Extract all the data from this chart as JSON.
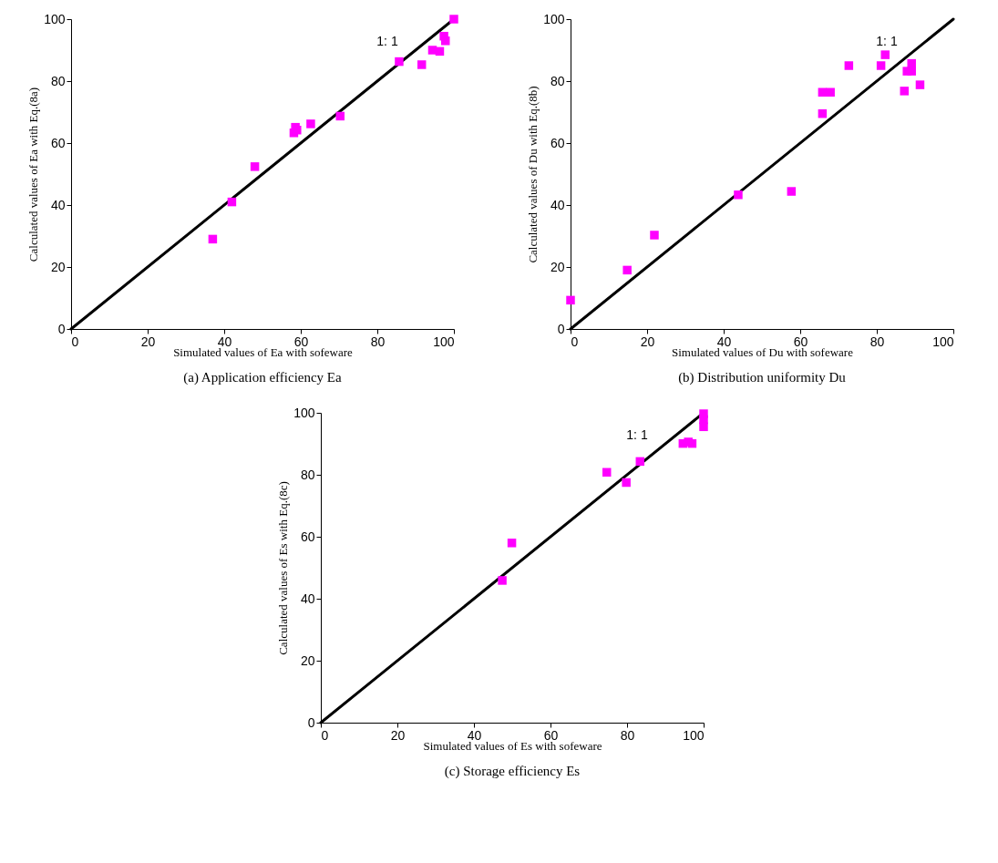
{
  "chart_data": [
    {
      "type": "scatter",
      "title": "(a)  Application efficiency Ea",
      "xlabel": "Simulated values of Ea  with sofeware",
      "ylabel": "Calculated values of Ea  with Eq.(8a)",
      "xlim": [
        0,
        100
      ],
      "ylim": [
        0,
        100
      ],
      "xticks": [
        0,
        20,
        40,
        60,
        80,
        100
      ],
      "yticks": [
        0,
        20,
        40,
        60,
        80,
        100
      ],
      "annotations": [
        "1: 1"
      ],
      "series": [
        {
          "color": "#ff00ff",
          "marker": "square",
          "x": [
            37,
            42,
            48,
            58.2,
            58.6,
            59,
            62.6,
            70.3,
            85.7,
            91.6,
            94.4,
            96.3,
            97.4,
            97.8,
            100
          ],
          "values": [
            29,
            41,
            52.4,
            63.3,
            65.1,
            64.2,
            66.2,
            68.7,
            86.3,
            85.3,
            90,
            89.6,
            94.5,
            93,
            100
          ]
        },
        {
          "type": "line",
          "color": "#000000",
          "x": [
            0,
            100
          ],
          "values": [
            0,
            100
          ]
        }
      ]
    },
    {
      "type": "scatter",
      "title": "(b)  Distribution uniformity Du",
      "xlabel": "Simulated values of Du  with sofeware",
      "ylabel": "Calculated values of Du  with Eq.(8b)",
      "xlim": [
        0,
        100
      ],
      "ylim": [
        0,
        100
      ],
      "xticks": [
        0,
        20,
        40,
        60,
        80,
        100
      ],
      "yticks": [
        0,
        20,
        40,
        60,
        80,
        100
      ],
      "annotations": [
        "1: 1"
      ],
      "series": [
        {
          "color": "#ff00ff",
          "marker": "square",
          "x": [
            0,
            14.8,
            21.9,
            43.8,
            57.7,
            65.8,
            65.8,
            67.9,
            72.7,
            81.1,
            82.2,
            87.2,
            87.9,
            89.1,
            89.1,
            91.3
          ],
          "values": [
            9.3,
            19,
            30.3,
            43.3,
            44.4,
            69.5,
            76.4,
            76.4,
            85,
            85,
            88.5,
            76.8,
            83.2,
            85.7,
            83.2,
            78.8
          ]
        },
        {
          "type": "line",
          "color": "#000000",
          "x": [
            0,
            100
          ],
          "values": [
            0,
            100
          ]
        }
      ]
    },
    {
      "type": "scatter",
      "title": "(c)  Storage efficiency Es",
      "xlabel": "Simulated values of Es  with sofeware",
      "ylabel": "Calculated values of Es  with Eq.(8c)",
      "xlim": [
        0,
        100
      ],
      "ylim": [
        0,
        100
      ],
      "xticks": [
        0,
        20,
        40,
        60,
        80,
        100
      ],
      "yticks": [
        0,
        20,
        40,
        60,
        80,
        100
      ],
      "annotations": [
        "1: 1"
      ],
      "series": [
        {
          "color": "#ff00ff",
          "marker": "square",
          "x": [
            47.4,
            49.9,
            74.7,
            79.8,
            83.4,
            94.6,
            96,
            97,
            100,
            100,
            100
          ],
          "values": [
            45.9,
            58,
            80.8,
            77.5,
            84.3,
            90.1,
            90.6,
            90.1,
            99.7,
            97.8,
            95.5
          ]
        },
        {
          "type": "line",
          "color": "#000000",
          "x": [
            0,
            100
          ],
          "values": [
            0,
            100
          ]
        }
      ]
    }
  ]
}
